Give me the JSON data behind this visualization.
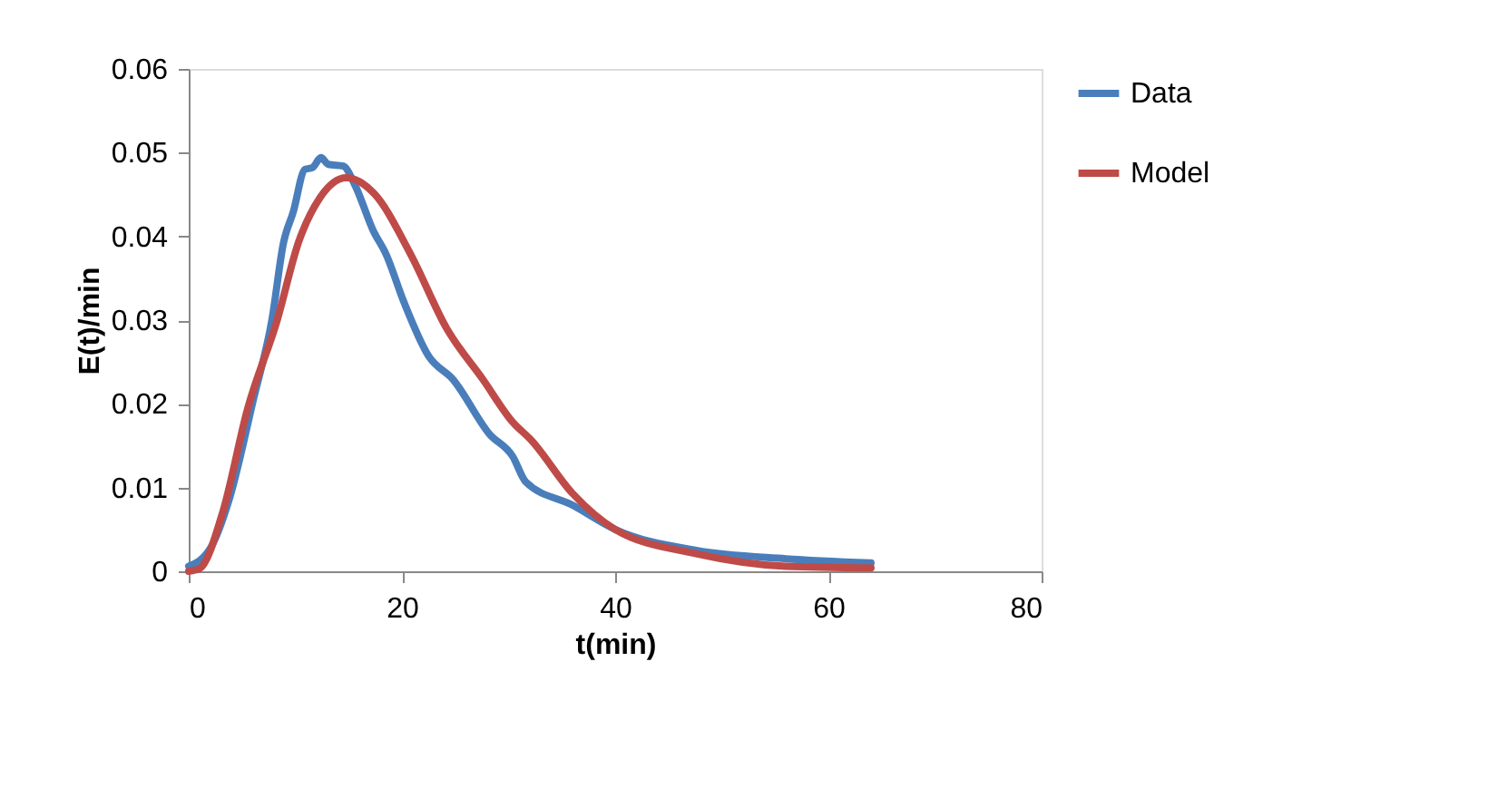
{
  "chart_data": {
    "type": "line",
    "xlabel": "t(min)",
    "ylabel": "E(t)/min",
    "xlim": [
      0,
      80
    ],
    "xticks": [
      0,
      20,
      40,
      60,
      80
    ],
    "ylim": [
      0,
      0.06
    ],
    "yticks": [
      0,
      0.01,
      0.02,
      0.03,
      0.04,
      0.05,
      0.06
    ],
    "grid": false,
    "legend": "right",
    "marker": "none",
    "line_style": "solid",
    "series": [
      {
        "name": "Data",
        "color": "#4a7ebb",
        "x": [
          0,
          2.1,
          3.8,
          6.1,
          7.8,
          8.9,
          9.8,
          10.9,
          11.6,
          12.4,
          13.1,
          14.5,
          15.6,
          17.3,
          18.5,
          20.2,
          22.5,
          24.8,
          28.2,
          30.4,
          31.6,
          36,
          40,
          47.6,
          56,
          64
        ],
        "values": [
          0.0006,
          0.0029,
          0.0086,
          0.0207,
          0.03,
          0.0393,
          0.0429,
          0.048,
          0.0482,
          0.0494,
          0.0486,
          0.0484,
          0.0461,
          0.0407,
          0.0379,
          0.0321,
          0.0257,
          0.0229,
          0.0164,
          0.0137,
          0.0107,
          0.0079,
          0.005,
          0.0025,
          0.0015,
          0.001
        ]
      },
      {
        "name": "Model",
        "color": "#be4b48",
        "x": [
          0,
          1,
          3.2,
          5.5,
          8.3,
          10.3,
          12.3,
          14.8,
          17.4,
          20.8,
          24.2,
          27.6,
          30.4,
          32.1,
          36,
          40,
          47.6,
          56,
          64
        ],
        "values": [
          0,
          0.0003,
          0.0071,
          0.0193,
          0.03,
          0.0393,
          0.0446,
          0.047,
          0.0451,
          0.0379,
          0.029,
          0.0229,
          0.0178,
          0.0157,
          0.0093,
          0.005,
          0.0021,
          0.0006,
          0.0004
        ]
      }
    ]
  }
}
